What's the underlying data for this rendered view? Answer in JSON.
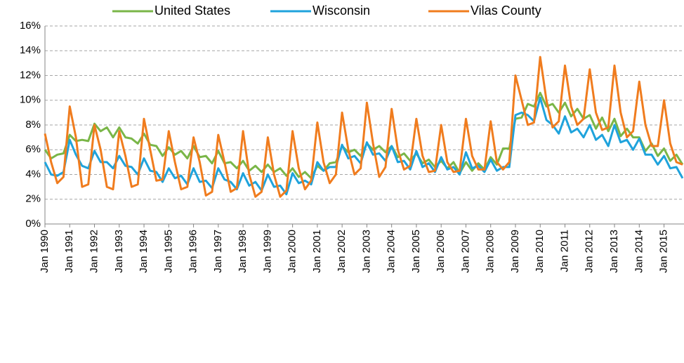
{
  "chart_data": {
    "type": "line",
    "categories": [
      "Jan 1990",
      null,
      null,
      null,
      "Jan 1991",
      null,
      null,
      null,
      "Jan 1992",
      null,
      null,
      null,
      "Jan 1993",
      null,
      null,
      null,
      "Jan 1994",
      null,
      null,
      null,
      "Jan 1995",
      null,
      null,
      null,
      "Jan 1996",
      null,
      null,
      null,
      "Jan 1997",
      null,
      null,
      null,
      "Jan 1998",
      null,
      null,
      null,
      "Jan 1999",
      null,
      null,
      null,
      "Jan 2000",
      null,
      null,
      null,
      "Jan 2001",
      null,
      null,
      null,
      "Jan 2002",
      null,
      null,
      null,
      "Jan 2003",
      null,
      null,
      null,
      "Jan 2004",
      null,
      null,
      null,
      "Jan 2005",
      null,
      null,
      null,
      "Jan 2006",
      null,
      null,
      null,
      "Jan 2007",
      null,
      null,
      null,
      "Jan 2008",
      null,
      null,
      null,
      "Jan 2009",
      null,
      null,
      null,
      "Jan 2010",
      null,
      null,
      null,
      "Jan 2011",
      null,
      null,
      null,
      "Jan 2012",
      null,
      null,
      null,
      "Jan 2013",
      null,
      null,
      null,
      "Jan 2014",
      null,
      null,
      null,
      "Jan 2015",
      null,
      null,
      null
    ],
    "series": [
      {
        "name": "United States",
        "color": "#7ab648",
        "values": [
          6.0,
          5.3,
          5.6,
          5.7,
          7.2,
          6.7,
          6.8,
          6.7,
          8.1,
          7.5,
          7.8,
          7.0,
          7.8,
          7.0,
          6.9,
          6.5,
          7.3,
          6.4,
          6.3,
          5.5,
          6.2,
          5.6,
          5.9,
          5.3,
          6.3,
          5.4,
          5.5,
          4.9,
          5.9,
          4.9,
          5.0,
          4.5,
          5.1,
          4.3,
          4.7,
          4.2,
          4.8,
          4.2,
          4.5,
          3.9,
          4.5,
          3.8,
          4.2,
          3.7,
          4.7,
          4.3,
          4.9,
          5.0,
          6.3,
          5.8,
          6.0,
          5.5,
          6.5,
          6.0,
          6.3,
          5.8,
          6.3,
          5.4,
          5.7,
          5.1,
          5.7,
          4.9,
          5.2,
          4.6,
          5.1,
          4.5,
          5.0,
          4.1,
          5.0,
          4.3,
          4.9,
          4.4,
          5.4,
          4.8,
          6.1,
          6.1,
          8.5,
          8.6,
          9.7,
          9.5,
          10.6,
          9.5,
          9.7,
          9.0,
          9.8,
          8.7,
          9.3,
          8.5,
          8.8,
          7.7,
          8.6,
          7.5,
          8.5,
          7.1,
          7.7,
          7.0,
          7.0,
          5.9,
          6.5,
          5.5,
          6.1,
          5.1,
          5.6,
          4.8
        ]
      },
      {
        "name": "Wisconsin",
        "color": "#1fa3dc",
        "values": [
          5.0,
          4.0,
          3.9,
          4.2,
          6.8,
          5.6,
          4.7,
          4.5,
          5.9,
          5.0,
          5.0,
          4.5,
          5.5,
          4.7,
          4.6,
          4.0,
          5.3,
          4.3,
          4.2,
          3.4,
          4.5,
          3.7,
          3.9,
          3.2,
          4.5,
          3.4,
          3.5,
          2.9,
          4.5,
          3.6,
          3.4,
          2.8,
          4.1,
          3.1,
          3.4,
          2.7,
          4.0,
          3.0,
          3.1,
          2.4,
          4.1,
          3.3,
          3.5,
          3.2,
          5.0,
          4.3,
          4.6,
          4.6,
          6.4,
          5.3,
          5.5,
          4.9,
          6.6,
          5.6,
          5.7,
          5.1,
          6.3,
          5.0,
          5.1,
          4.4,
          5.9,
          4.6,
          4.9,
          4.2,
          5.4,
          4.4,
          4.6,
          4.0,
          5.8,
          4.5,
          4.7,
          4.2,
          5.2,
          4.3,
          4.6,
          4.6,
          8.8,
          9.0,
          8.8,
          8.3,
          10.2,
          8.4,
          8.0,
          7.3,
          8.7,
          7.4,
          7.7,
          7.0,
          8.0,
          6.8,
          7.2,
          6.3,
          8.0,
          6.6,
          6.8,
          6.0,
          6.9,
          5.6,
          5.6,
          4.8,
          5.5,
          4.5,
          4.6,
          3.7
        ]
      },
      {
        "name": "Vilas County",
        "color": "#f07c1e",
        "values": [
          7.3,
          5.0,
          3.3,
          3.8,
          9.5,
          7.0,
          3.0,
          3.2,
          8.0,
          6.0,
          3.0,
          2.8,
          7.5,
          5.5,
          3.0,
          3.2,
          8.5,
          6.0,
          3.5,
          3.6,
          7.5,
          5.0,
          2.8,
          3.0,
          7.0,
          5.0,
          2.3,
          2.6,
          7.2,
          5.0,
          2.6,
          2.9,
          7.5,
          4.0,
          2.2,
          2.6,
          7.0,
          4.0,
          2.2,
          2.7,
          7.5,
          4.5,
          2.8,
          3.5,
          8.2,
          5.0,
          3.3,
          4.0,
          9.0,
          6.0,
          4.0,
          4.5,
          9.8,
          6.5,
          3.8,
          4.6,
          9.3,
          6.0,
          4.4,
          4.7,
          8.5,
          5.5,
          4.2,
          4.3,
          8.0,
          5.0,
          4.2,
          4.3,
          8.5,
          5.5,
          4.4,
          4.4,
          8.3,
          5.0,
          4.4,
          5.0,
          12.0,
          10.0,
          8.0,
          8.2,
          13.5,
          10.0,
          7.8,
          8.3,
          12.8,
          9.5,
          8.0,
          8.5,
          12.5,
          9.0,
          7.6,
          7.8,
          12.8,
          9.0,
          7.0,
          7.5,
          11.5,
          8.0,
          6.3,
          6.3,
          10.0,
          6.5,
          5.0,
          4.8
        ]
      }
    ],
    "ylim": [
      0,
      16
    ],
    "yticks": [
      {
        "value": 0,
        "label": "0%"
      },
      {
        "value": 2,
        "label": "2%"
      },
      {
        "value": 4,
        "label": "4%"
      },
      {
        "value": 6,
        "label": "6%"
      },
      {
        "value": 8,
        "label": "8%"
      },
      {
        "value": 10,
        "label": "10%"
      },
      {
        "value": 12,
        "label": "12%"
      },
      {
        "value": 14,
        "label": "14%"
      },
      {
        "value": 16,
        "label": "16%"
      }
    ],
    "grid": true,
    "legend": "top"
  }
}
